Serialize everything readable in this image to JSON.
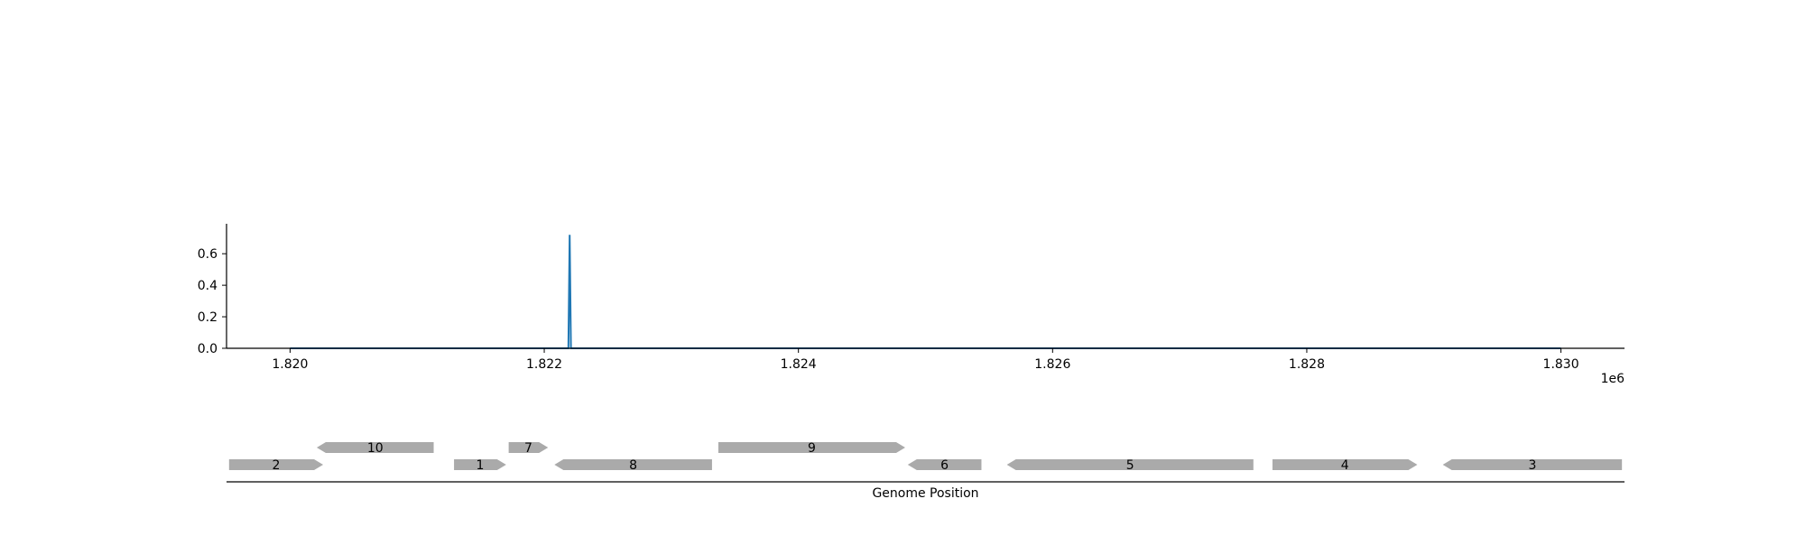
{
  "chart_data": [
    {
      "type": "line",
      "title": "",
      "xlabel": "",
      "ylabel": "",
      "x_offset_label": "1e6",
      "xlim": [
        1819500,
        1830500
      ],
      "ylim": [
        0,
        0.79
      ],
      "x_ticks": [
        1.82,
        1.822,
        1.824,
        1.826,
        1.828,
        1.83
      ],
      "x_tick_labels": [
        "1.820",
        "1.822",
        "1.824",
        "1.826",
        "1.828",
        "1.830"
      ],
      "y_ticks": [
        0,
        0.2,
        0.4,
        0.6
      ],
      "y_tick_labels": [
        "0.0",
        "0.2",
        "0.4",
        "0.6"
      ],
      "grid": false,
      "series": [
        {
          "color": "#1f77b4",
          "x": [
            1820000,
            1822190,
            1822200,
            1822210,
            1830000
          ],
          "y": [
            0,
            0,
            0.72,
            0,
            0
          ]
        }
      ]
    },
    {
      "type": "gene_track",
      "xlabel": "Genome Position",
      "xlim": [
        1819500,
        1830500
      ],
      "gene_color": "#aaaaaa",
      "genes": [
        {
          "label": "2",
          "start": 1819520,
          "end": 1820260,
          "strand": "+",
          "row": 0
        },
        {
          "label": "10",
          "start": 1820210,
          "end": 1821130,
          "strand": "-",
          "row": 1
        },
        {
          "label": "1",
          "start": 1821290,
          "end": 1821700,
          "strand": "+",
          "row": 0
        },
        {
          "label": "7",
          "start": 1821720,
          "end": 1822030,
          "strand": "+",
          "row": 1
        },
        {
          "label": "8",
          "start": 1822080,
          "end": 1823320,
          "strand": "-",
          "row": 0
        },
        {
          "label": "9",
          "start": 1823370,
          "end": 1824840,
          "strand": "+",
          "row": 1
        },
        {
          "label": "6",
          "start": 1824860,
          "end": 1825440,
          "strand": "-",
          "row": 0
        },
        {
          "label": "5",
          "start": 1825640,
          "end": 1827580,
          "strand": "-",
          "row": 0
        },
        {
          "label": "4",
          "start": 1827730,
          "end": 1828870,
          "strand": "+",
          "row": 0
        },
        {
          "label": "3",
          "start": 1829070,
          "end": 1830480,
          "strand": "-",
          "row": 0
        }
      ]
    }
  ]
}
